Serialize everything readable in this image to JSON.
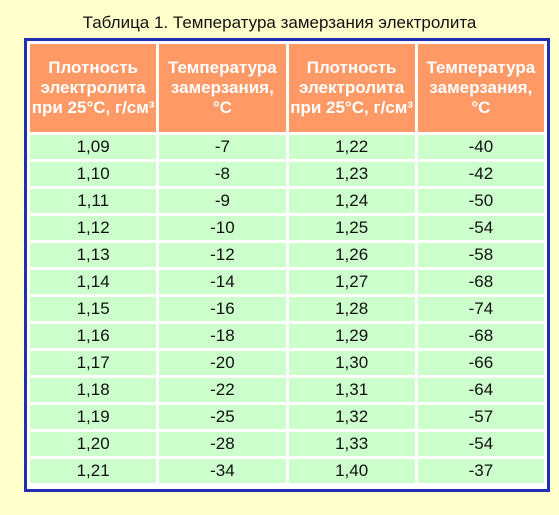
{
  "caption": "Таблица 1. Температура замерзания электролита",
  "headers": {
    "density": "Плотность электролита при 25°C, г/см³",
    "temp": "Температура замерзания, °C"
  },
  "rows": [
    {
      "d1": "1,09",
      "t1": "-7",
      "d2": "1,22",
      "t2": "-40"
    },
    {
      "d1": "1,10",
      "t1": "-8",
      "d2": "1,23",
      "t2": "-42"
    },
    {
      "d1": "1,11",
      "t1": "-9",
      "d2": "1,24",
      "t2": "-50"
    },
    {
      "d1": "1,12",
      "t1": "-10",
      "d2": "1,25",
      "t2": "-54"
    },
    {
      "d1": "1,13",
      "t1": "-12",
      "d2": "1,26",
      "t2": "-58"
    },
    {
      "d1": "1,14",
      "t1": "-14",
      "d2": "1,27",
      "t2": "-68"
    },
    {
      "d1": "1,15",
      "t1": "-16",
      "d2": "1,28",
      "t2": "-74"
    },
    {
      "d1": "1,16",
      "t1": "-18",
      "d2": "1,29",
      "t2": "-68"
    },
    {
      "d1": "1,17",
      "t1": "-20",
      "d2": "1,30",
      "t2": "-66"
    },
    {
      "d1": "1,18",
      "t1": "-22",
      "d2": "1,31",
      "t2": "-64"
    },
    {
      "d1": "1,19",
      "t1": "-25",
      "d2": "1,32",
      "t2": "-57"
    },
    {
      "d1": "1,20",
      "t1": "-28",
      "d2": "1,33",
      "t2": "-54"
    },
    {
      "d1": "1,21",
      "t1": "-34",
      "d2": "1,40",
      "t2": "-37"
    }
  ],
  "colors": {
    "page_bg": "#ffffcc",
    "header_bg": "#ff9966",
    "cell_bg": "#ccffcc",
    "border": "#1f2fb3"
  }
}
